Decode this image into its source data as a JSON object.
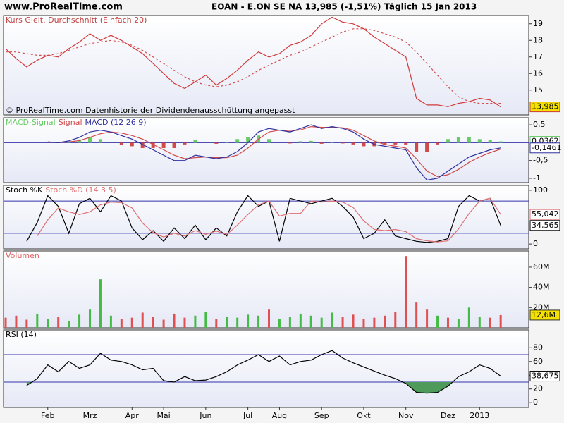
{
  "header": {
    "logo": "www.ProRealTime.com",
    "title": "EOAN - E.ON SE NA    13,985 (-1,51%)    Täglich  15 Jan 2013"
  },
  "x_categories": [
    null,
    null,
    null,
    null,
    "Feb",
    null,
    null,
    null,
    "Mrz",
    null,
    null,
    null,
    "Apr",
    null,
    null,
    "Mai",
    null,
    null,
    null,
    "Jun",
    null,
    null,
    null,
    "Jul",
    null,
    null,
    "Aug",
    null,
    null,
    null,
    "Sep",
    null,
    null,
    null,
    "Okt",
    null,
    null,
    null,
    "Nov",
    null,
    null,
    null,
    "Dez",
    null,
    null,
    "2013",
    null,
    null
  ],
  "chart_data": [
    {
      "type": "line",
      "title": "Kurs Gleit. Durchschnitt (Einfach 20)",
      "title_color": "#c04040",
      "note": "© ProRealTime.com Datenhistorie der Dividendenausschüttung angepasst",
      "ylim": [
        13.5,
        19.5
      ],
      "yticks": [
        15,
        16,
        17,
        18,
        19
      ],
      "series": [
        {
          "color": "#d03a3a",
          "values": [
            17.5,
            16.9,
            16.4,
            16.8,
            17.1,
            17.0,
            17.5,
            17.9,
            18.4,
            18.0,
            18.3,
            18.0,
            17.6,
            17.2,
            16.6,
            16.0,
            15.4,
            15.1,
            15.5,
            15.9,
            15.3,
            15.7,
            16.2,
            16.8,
            17.3,
            17.0,
            17.2,
            17.7,
            17.9,
            18.3,
            19.0,
            19.4,
            19.1,
            19.0,
            18.7,
            18.2,
            17.8,
            17.4,
            17.0,
            14.5,
            14.1,
            14.1,
            14.0,
            14.2,
            14.3,
            14.5,
            14.4,
            13.985
          ],
          "last_label": "13,985",
          "label_bg": "#f5e100"
        },
        {
          "color": "#d05050",
          "dash": "3,3",
          "values": [
            17.3,
            17.3,
            17.2,
            17.1,
            17.1,
            17.2,
            17.4,
            17.6,
            17.8,
            17.9,
            18.0,
            17.9,
            17.7,
            17.4,
            17.0,
            16.6,
            16.2,
            15.8,
            15.5,
            15.3,
            15.2,
            15.3,
            15.5,
            15.8,
            16.2,
            16.5,
            16.8,
            17.1,
            17.3,
            17.6,
            17.9,
            18.2,
            18.5,
            18.7,
            18.7,
            18.6,
            18.4,
            18.2,
            17.9,
            17.3,
            16.6,
            15.9,
            15.2,
            14.6,
            14.3,
            14.2,
            14.2,
            14.2
          ]
        }
      ]
    },
    {
      "type": "line",
      "ylim": [
        -1.12,
        0.7
      ],
      "yticks": [
        {
          "value": 0.5,
          "label": "0,5"
        },
        {
          "value": -0.5,
          "label": "-0,5"
        },
        -1
      ],
      "hlines": [
        0
      ],
      "series": [
        {
          "name": "MACD-Signal",
          "kind": "bar",
          "pos_color": "#66cc66",
          "neg_color": "#d04a4a",
          "values": [
            null,
            null,
            null,
            null,
            0,
            -0.01,
            0.03,
            0.09,
            0.15,
            0.1,
            0,
            -0.07,
            -0.1,
            -0.15,
            -0.15,
            -0.15,
            -0.15,
            -0.05,
            0.07,
            0,
            -0.03,
            0.02,
            0.1,
            0.15,
            0.2,
            0.1,
            0,
            -0.02,
            0.04,
            0.05,
            -0.03,
            0.02,
            -0.02,
            -0.05,
            -0.1,
            -0.1,
            -0.05,
            -0.05,
            -0.05,
            -0.25,
            -0.25,
            -0.05,
            0.1,
            0.15,
            0.15,
            0.1,
            0.08,
            0.0362
          ],
          "last_label": "0,0362",
          "label_bg": "#ffffff"
        },
        {
          "name": "Signal",
          "color": "#d04a4a",
          "values": [
            null,
            null,
            null,
            null,
            0.02,
            0.01,
            0.02,
            0.06,
            0.15,
            0.25,
            0.3,
            0.27,
            0.2,
            0.1,
            -0.05,
            -0.2,
            -0.35,
            -0.45,
            -0.42,
            -0.4,
            -0.42,
            -0.42,
            -0.35,
            -0.15,
            0.1,
            0.3,
            0.35,
            0.32,
            0.36,
            0.45,
            0.43,
            0.43,
            0.42,
            0.35,
            0.2,
            0.05,
            -0.05,
            -0.1,
            -0.15,
            -0.45,
            -0.8,
            -0.95,
            -0.9,
            -0.75,
            -0.55,
            -0.4,
            -0.28,
            -0.1823
          ]
        },
        {
          "name": "MACD (12 26 9)",
          "color": "#3030a0",
          "values": [
            null,
            null,
            null,
            null,
            0.02,
            0.0,
            0.05,
            0.15,
            0.3,
            0.35,
            0.3,
            0.2,
            0.1,
            -0.05,
            -0.2,
            -0.35,
            -0.5,
            -0.5,
            -0.35,
            -0.4,
            -0.45,
            -0.4,
            -0.25,
            0.0,
            0.3,
            0.4,
            0.35,
            0.3,
            0.4,
            0.5,
            0.4,
            0.45,
            0.4,
            0.3,
            0.1,
            -0.05,
            -0.1,
            -0.15,
            -0.2,
            -0.7,
            -1.05,
            -1.0,
            -0.8,
            -0.6,
            -0.4,
            -0.3,
            -0.2,
            -0.1461
          ],
          "last_label": "-0,1461",
          "label_bg": "#ffffff"
        }
      ]
    },
    {
      "type": "line",
      "ylim": [
        -9,
        109
      ],
      "yticks": [
        100,
        0
      ],
      "hlines": [
        80,
        20
      ],
      "series": [
        {
          "name": "Stoch %K",
          "color": "#000000",
          "values": [
            null,
            null,
            5,
            40,
            90,
            70,
            20,
            75,
            85,
            60,
            90,
            80,
            30,
            8,
            25,
            5,
            30,
            10,
            35,
            8,
            30,
            15,
            60,
            90,
            70,
            80,
            5,
            85,
            80,
            75,
            80,
            85,
            70,
            50,
            10,
            20,
            45,
            15,
            10,
            5,
            3,
            5,
            10,
            70,
            90,
            80,
            85,
            34.565
          ],
          "last_label": "34,565",
          "label_bg": "#ffffff"
        },
        {
          "name": "Stoch %D (14 3 5)",
          "color": "#e07070",
          "values": [
            null,
            null,
            null,
            15,
            45,
            67,
            60,
            55,
            60,
            73,
            78,
            77,
            67,
            39,
            21,
            13,
            20,
            15,
            25,
            18,
            24,
            18,
            35,
            55,
            73,
            80,
            52,
            57,
            57,
            80,
            78,
            80,
            78,
            68,
            43,
            27,
            25,
            27,
            23,
            10,
            6,
            4,
            6,
            28,
            57,
            80,
            85,
            55.042
          ],
          "last_label": "55,042",
          "label_bg": "#ffffff"
        }
      ]
    },
    {
      "type": "bar",
      "title": "Volumen",
      "title_color": "#e06060",
      "ylim": [
        0,
        76000000
      ],
      "yticks": [
        {
          "value": 60000000,
          "label": "60M"
        },
        {
          "value": 40000000,
          "label": "40M"
        },
        {
          "value": 20000000,
          "label": "20M"
        }
      ],
      "series": [
        {
          "kind": "bar",
          "colors": [
            "#e05050",
            "#e05050",
            "#e05050",
            "#44bb44",
            "#44bb44",
            "#e05050",
            "#44bb44",
            "#44bb44",
            "#44bb44",
            "#44bb44",
            "#44bb44",
            "#e05050",
            "#e05050",
            "#e05050",
            "#e05050",
            "#e05050",
            "#e05050",
            "#e05050",
            "#44bb44",
            "#44bb44",
            "#e05050",
            "#44bb44",
            "#44bb44",
            "#44bb44",
            "#44bb44",
            "#e05050",
            "#44bb44",
            "#44bb44",
            "#44bb44",
            "#44bb44",
            "#44bb44",
            "#44bb44",
            "#e05050",
            "#e05050",
            "#e05050",
            "#e05050",
            "#e05050",
            "#e05050",
            "#e05050",
            "#e05050",
            "#e05050",
            "#44bb44",
            "#e05050",
            "#44bb44",
            "#44bb44",
            "#44bb44",
            "#e05050",
            "#e05050"
          ],
          "values": [
            10000000,
            12000000,
            8000000,
            14000000,
            9000000,
            11000000,
            7000000,
            13000000,
            18000000,
            48000000,
            12000000,
            9000000,
            10000000,
            15000000,
            11000000,
            8000000,
            14000000,
            10000000,
            12000000,
            16000000,
            9000000,
            11000000,
            10000000,
            13000000,
            12000000,
            18000000,
            9000000,
            11000000,
            14000000,
            12000000,
            10000000,
            15000000,
            11000000,
            13000000,
            9000000,
            10000000,
            12000000,
            16000000,
            71000000,
            25000000,
            18000000,
            12000000,
            10000000,
            9000000,
            20000000,
            11000000,
            10000000,
            12600000
          ],
          "last_label": "12,6M",
          "label_bg": "#f5e100"
        }
      ]
    },
    {
      "type": "line",
      "title": "RSI (14)",
      "title_color": "#000000",
      "ylim": [
        -7,
        106
      ],
      "yticks": [
        80,
        60,
        40,
        20,
        0
      ],
      "hlines": [
        70,
        30
      ],
      "series": [
        {
          "color": "#000000",
          "fill_below": 30,
          "fill_color": "#4d9a5a",
          "values": [
            null,
            null,
            25,
            35,
            55,
            45,
            60,
            50,
            55,
            72,
            62,
            60,
            55,
            48,
            50,
            32,
            30,
            38,
            32,
            33,
            38,
            45,
            55,
            62,
            70,
            60,
            68,
            55,
            60,
            62,
            70,
            76,
            65,
            58,
            52,
            46,
            40,
            35,
            28,
            15,
            14,
            15,
            24,
            38,
            45,
            55,
            50,
            38.675
          ],
          "last_label": "38,675",
          "label_bg": "#ffffff"
        }
      ]
    }
  ]
}
